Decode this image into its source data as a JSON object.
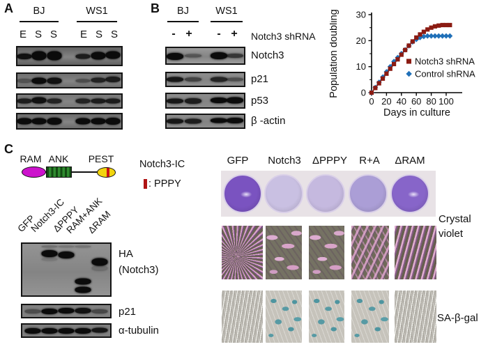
{
  "panelA": {
    "label": "A",
    "groups": [
      {
        "name": "BJ",
        "lanes": [
          "E",
          "S",
          "S"
        ]
      },
      {
        "name": "WS1",
        "lanes": [
          "E",
          "S",
          "S"
        ]
      }
    ],
    "blots": [
      {
        "bg": "#616161",
        "lane_w": 21,
        "lanes": [
          0.065,
          0.209,
          0.353,
          0.634,
          0.778,
          0.922
        ],
        "bands": [
          [
            0,
            0.5,
            8,
            0.95
          ],
          [
            1,
            0.47,
            13,
            1
          ],
          [
            2,
            0.47,
            13,
            1
          ],
          [
            3,
            0.5,
            7,
            0.85
          ],
          [
            4,
            0.47,
            11,
            1
          ],
          [
            5,
            0.45,
            11,
            1
          ]
        ]
      },
      {
        "bg": "#6f6f6f",
        "lane_w": 21,
        "lanes": [
          0.065,
          0.209,
          0.353,
          0.634,
          0.778,
          0.922
        ],
        "bands": [
          [
            0,
            0.52,
            6,
            0.4
          ],
          [
            1,
            0.5,
            9,
            1
          ],
          [
            2,
            0.5,
            9,
            0.95
          ],
          [
            3,
            0.52,
            5,
            0.45
          ],
          [
            4,
            0.47,
            7,
            0.8
          ],
          [
            5,
            0.42,
            8,
            0.85
          ]
        ]
      },
      {
        "bg": "#787878",
        "lane_w": 21,
        "lanes": [
          0.065,
          0.209,
          0.353,
          0.634,
          0.778,
          0.922
        ],
        "bands": [
          [
            0,
            0.5,
            7,
            0.85
          ],
          [
            1,
            0.46,
            9,
            0.95
          ],
          [
            2,
            0.5,
            7,
            0.8
          ],
          [
            3,
            0.5,
            7,
            0.8
          ],
          [
            4,
            0.5,
            7,
            0.85
          ],
          [
            5,
            0.5,
            7,
            0.85
          ]
        ]
      },
      {
        "bg": "#6b6b6b",
        "lane_w": 21,
        "lanes": [
          0.065,
          0.209,
          0.353,
          0.634,
          0.778,
          0.922
        ],
        "bands": [
          [
            0,
            0.5,
            9,
            1
          ],
          [
            1,
            0.5,
            9,
            1
          ],
          [
            2,
            0.5,
            10,
            1
          ],
          [
            3,
            0.5,
            9,
            1
          ],
          [
            4,
            0.5,
            9,
            1
          ],
          [
            5,
            0.5,
            10,
            1
          ]
        ]
      }
    ]
  },
  "panelB": {
    "label": "B",
    "groups": [
      {
        "name": "BJ",
        "lanes": [
          "-",
          "+"
        ]
      },
      {
        "name": "WS1",
        "lanes": [
          "-",
          "+"
        ]
      }
    ],
    "treatment": "Notch3 shRNA",
    "row_labels": [
      "Notch3",
      "p21",
      "p53",
      "β -actin"
    ],
    "blots": [
      {
        "bg": "#9b9b9b",
        "lane_w": 24,
        "lanes": [
          0.104,
          0.339,
          0.678,
          0.887
        ],
        "bands": [
          [
            0,
            0.55,
            10,
            1
          ],
          [
            1,
            0.52,
            5,
            0.4
          ],
          [
            2,
            0.52,
            10,
            1
          ],
          [
            3,
            0.52,
            6,
            0.65
          ]
        ]
      },
      {
        "bg": "#8f8f8f",
        "lane_w": 24,
        "lanes": [
          0.104,
          0.339,
          0.678,
          0.887
        ],
        "bands": [
          [
            0,
            0.5,
            7,
            0.9
          ],
          [
            1,
            0.5,
            6,
            0.55
          ],
          [
            2,
            0.5,
            7,
            0.8
          ],
          [
            3,
            0.5,
            5,
            0.45
          ]
        ]
      },
      {
        "bg": "#8c8c8c",
        "lane_w": 24,
        "lanes": [
          0.104,
          0.339,
          0.678,
          0.887
        ],
        "bands": [
          [
            0,
            0.5,
            7,
            0.9
          ],
          [
            1,
            0.5,
            8,
            0.85
          ],
          [
            2,
            0.47,
            8,
            1
          ],
          [
            3,
            0.47,
            9,
            1
          ]
        ]
      },
      {
        "bg": "#8c8c8c",
        "lane_w": 24,
        "lanes": [
          0.104,
          0.339,
          0.678,
          0.887
        ],
        "bands": [
          [
            0,
            0.5,
            7,
            0.9
          ],
          [
            1,
            0.5,
            7,
            0.85
          ],
          [
            2,
            0.47,
            7,
            1
          ],
          [
            3,
            0.45,
            8,
            1
          ]
        ]
      }
    ]
  },
  "chart_data": {
    "type": "line",
    "xlabel": "Days in culture",
    "ylabel": "Population doubling",
    "xlim": [
      0,
      120
    ],
    "ylim": [
      0,
      30
    ],
    "xticks": [
      0,
      20,
      40,
      60,
      80,
      100
    ],
    "yticks": [
      0,
      10,
      20,
      30
    ],
    "yticks_minor": [
      5,
      15,
      25
    ],
    "legend_position": "inside-right",
    "x": [
      0,
      5,
      10,
      15,
      20,
      25,
      30,
      35,
      40,
      45,
      50,
      55,
      60,
      65,
      70,
      75,
      80,
      85,
      90,
      95,
      100,
      105
    ],
    "series": [
      {
        "name": "Notch3 shRNA",
        "marker": "square",
        "color": "#8b1b12",
        "values": [
          0,
          1.8,
          3.6,
          5.4,
          7.3,
          9.2,
          11,
          12.8,
          14.6,
          16.4,
          18.1,
          19.7,
          21.2,
          22.4,
          23.4,
          24.3,
          25,
          25.5,
          25.8,
          26,
          26,
          26
        ]
      },
      {
        "name": "Control shRNA",
        "marker": "diamond",
        "color": "#2070b8",
        "values": [
          0,
          2,
          4,
          6,
          8,
          10,
          12,
          13.5,
          15,
          16.5,
          18,
          19.5,
          20.5,
          21.2,
          21.6,
          21.8,
          21.8,
          21.8,
          21.8,
          21.8,
          21.8,
          21.8
        ]
      }
    ]
  },
  "panelC": {
    "label": "C",
    "schematic": {
      "domains": [
        "RAM",
        "ANK",
        "PEST"
      ],
      "domain_colors": {
        "RAM": "#cc12cc",
        "ANK": "#2e8b2e",
        "PEST": "#f2d40e"
      },
      "construct_label": "Notch3-IC",
      "ppy_legend": ": PPPY",
      "ppy_color": "#b01414"
    },
    "blot": {
      "lane_labels": [
        "GFP",
        "Notch3-IC",
        "ΔPPPY",
        "RAM+ANK",
        "ΔRAM"
      ],
      "row_labels": [
        "HA",
        "(Notch3)",
        "p21",
        "α-tubulin"
      ],
      "blots": [
        {
          "bg": "#949494",
          "lane_w": 23,
          "lanes": [
            0.12,
            0.308,
            0.5,
            0.692,
            0.877
          ],
          "bands": [
            [
              1,
              0.06,
              3,
              0.25
            ],
            [
              2,
              0.06,
              3,
              0.2
            ],
            [
              3,
              0.06,
              3,
              0.22
            ],
            [
              1,
              0.19,
              10,
              1
            ],
            [
              2,
              0.22,
              10,
              1
            ],
            [
              1,
              0.3,
              5,
              0.15
            ],
            [
              4,
              0.35,
              11,
              1
            ],
            [
              4,
              0.47,
              8,
              0.2
            ],
            [
              3,
              0.73,
              9,
              1
            ],
            [
              3,
              0.89,
              9,
              1
            ]
          ]
        },
        {
          "bg": "#808080",
          "lane_w": 23,
          "lanes": [
            0.12,
            0.308,
            0.5,
            0.692,
            0.877
          ],
          "bands": [
            [
              0,
              0.5,
              6,
              0.45
            ],
            [
              1,
              0.5,
              8,
              1
            ],
            [
              2,
              0.47,
              8,
              1
            ],
            [
              3,
              0.47,
              8,
              0.95
            ],
            [
              4,
              0.5,
              6,
              0.5
            ]
          ]
        },
        {
          "bg": "#7d7d7d",
          "lane_w": 23,
          "lanes": [
            0.12,
            0.308,
            0.5,
            0.692,
            0.877
          ],
          "bands": [
            [
              0,
              0.5,
              8,
              1
            ],
            [
              1,
              0.5,
              8,
              1
            ],
            [
              2,
              0.5,
              8,
              1
            ],
            [
              3,
              0.5,
              8,
              1
            ],
            [
              4,
              0.47,
              7,
              0.9
            ]
          ]
        }
      ]
    },
    "assay": {
      "columns": [
        "GFP",
        "Notch3",
        "ΔPPPY",
        "R+A",
        "ΔRAM"
      ],
      "well_colors": [
        "#7a53c0",
        "#c9c0e2",
        "#c5b9df",
        "#ab9ed6",
        "#8765c9"
      ],
      "well_smear": [
        true,
        false,
        false,
        false,
        true
      ],
      "cv_density": [
        "dense-radial",
        "sparse",
        "sparse",
        "medium",
        "dense-diag"
      ],
      "sa_type": [
        "dense",
        "blue",
        "blue",
        "blue",
        "dense"
      ],
      "row1_label_lines": [
        "Crystal",
        "violet"
      ],
      "row2_label": "SA-β-gal"
    }
  }
}
